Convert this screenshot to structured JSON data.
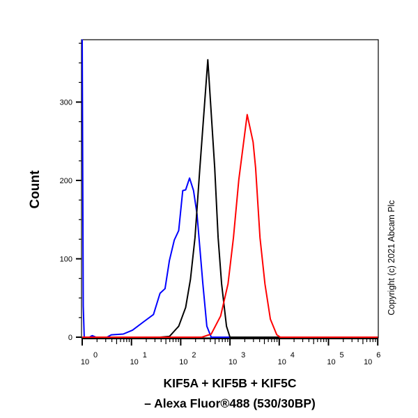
{
  "chart_data": {
    "type": "line",
    "title": "",
    "xlabel_lines": [
      "KIF5A + KIF5B + KIF5C",
      "– Alexa Fluor®488 (530/30BP)"
    ],
    "ylabel": "Count",
    "x_scale": "log",
    "xlim": [
      1,
      1000000
    ],
    "ylim": [
      0,
      380
    ],
    "x_ticks": [
      {
        "base": "10",
        "exp": "0"
      },
      {
        "base": "10",
        "exp": "1"
      },
      {
        "base": "10",
        "exp": "2"
      },
      {
        "base": "10",
        "exp": "3"
      },
      {
        "base": "10",
        "exp": "4"
      },
      {
        "base": "10",
        "exp": "5"
      },
      {
        "base": "10",
        "exp": "6"
      }
    ],
    "y_ticks": [
      "0",
      "100",
      "200",
      "300"
    ],
    "grid": false,
    "annotation": "Copyright (c) 2021 Abcam Plc",
    "series": [
      {
        "color": "#0000ff",
        "points": [
          [
            1,
            380
          ],
          [
            1.05,
            40
          ],
          [
            1.1,
            0
          ],
          [
            1.4,
            0
          ],
          [
            1.6,
            2
          ],
          [
            1.9,
            0
          ],
          [
            3.2,
            0
          ],
          [
            3.9,
            3
          ],
          [
            6.8,
            4
          ],
          [
            10.5,
            9
          ],
          [
            18,
            20
          ],
          [
            28,
            29
          ],
          [
            38,
            56
          ],
          [
            48,
            62
          ],
          [
            59,
            98
          ],
          [
            74,
            124
          ],
          [
            91,
            136
          ],
          [
            110,
            187
          ],
          [
            126,
            188
          ],
          [
            151,
            203
          ],
          [
            182,
            187
          ],
          [
            214,
            157
          ],
          [
            282,
            68
          ],
          [
            339,
            14
          ],
          [
            417,
            0
          ],
          [
            1000000,
            0
          ]
        ]
      },
      {
        "color": "#000000",
        "points": [
          [
            38,
            0
          ],
          [
            59,
            1
          ],
          [
            91,
            14
          ],
          [
            126,
            38
          ],
          [
            158,
            74
          ],
          [
            195,
            127
          ],
          [
            245,
            216
          ],
          [
            355,
            354
          ],
          [
            490,
            216
          ],
          [
            575,
            127
          ],
          [
            676,
            68
          ],
          [
            851,
            14
          ],
          [
            1000,
            0
          ],
          [
            1000000,
            0
          ]
        ]
      },
      {
        "color": "#ff0000",
        "points": [
          [
            1,
            0
          ],
          [
            269,
            0
          ],
          [
            417,
            4
          ],
          [
            646,
            27
          ],
          [
            912,
            68
          ],
          [
            1175,
            127
          ],
          [
            1514,
            201
          ],
          [
            2239,
            284
          ],
          [
            2951,
            249
          ],
          [
            3311,
            216
          ],
          [
            4074,
            127
          ],
          [
            5129,
            68
          ],
          [
            6607,
            23
          ],
          [
            8913,
            3
          ],
          [
            10471,
            0
          ],
          [
            1000000,
            0
          ]
        ]
      }
    ]
  }
}
